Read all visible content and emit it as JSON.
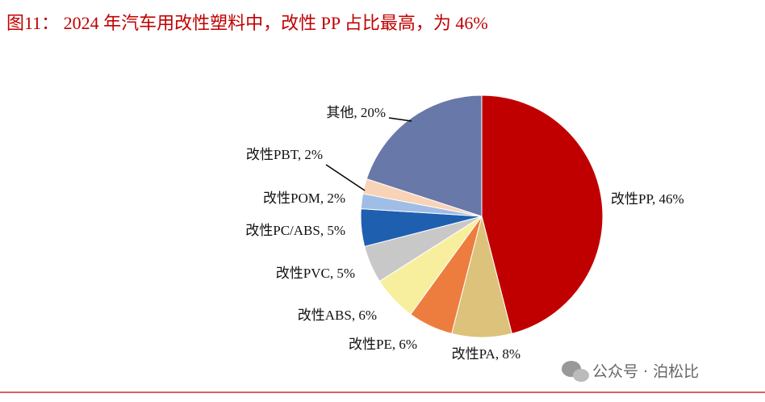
{
  "chart_data": {
    "type": "pie",
    "title": "图11：  2024 年汽车用改性塑料中，改性 PP 占比最高，为 46%",
    "values": [
      46,
      8,
      6,
      6,
      5,
      5,
      2,
      2,
      20
    ],
    "value_labels": [
      "改性PP, 46%",
      "改性PA, 8%",
      "改性PE, 6%",
      "改性ABS, 6%",
      "改性PVC, 5%",
      "改性PC/ABS, 5%",
      "改性POM, 2%",
      "改性PBT, 2%",
      "其他, 20%"
    ],
    "colors": [
      "#c00000",
      "#dcc27a",
      "#ed7d3f",
      "#f8ef9e",
      "#c8c8c8",
      "#1f5fb0",
      "#a0bde6",
      "#f9d3b7",
      "#6878a8"
    ],
    "watermark": "公众号 · 泊松比"
  }
}
